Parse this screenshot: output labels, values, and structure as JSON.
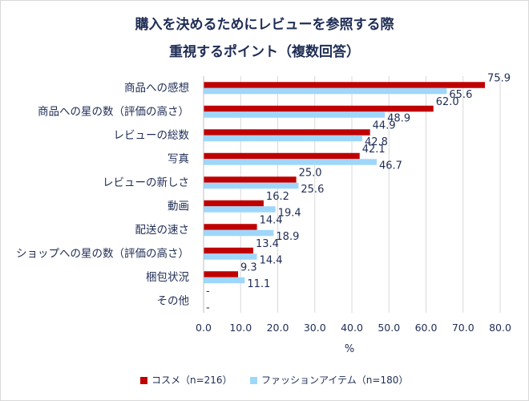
{
  "chart_data": {
    "type": "bar",
    "orientation": "horizontal",
    "title_lines": [
      "購入を決めるためにレビューを参照する際",
      "重視するポイント（複数回答）"
    ],
    "categories": [
      "商品への感想",
      "商品への星の数（評価の高さ）",
      "レビューの総数",
      "写真",
      "レビューの新しさ",
      "動画",
      "配送の速さ",
      "ショップへの星の数（評価の高さ）",
      "梱包状況",
      "その他"
    ],
    "series": [
      {
        "name": "コスメ（n=216）",
        "color": "#c00000",
        "values": [
          75.9,
          62.0,
          44.9,
          42.1,
          25.0,
          16.2,
          14.4,
          13.4,
          9.3,
          null
        ],
        "labels": [
          "75.9",
          "62.0",
          "44.9",
          "42.1",
          "25.0",
          "16.2",
          "14.4",
          "13.4",
          "9.3",
          "-"
        ]
      },
      {
        "name": "ファッションアイテム（n=180）",
        "color": "#9fd7fb",
        "values": [
          65.6,
          48.9,
          42.8,
          46.7,
          25.6,
          19.4,
          18.9,
          14.4,
          11.1,
          null
        ],
        "labels": [
          "65.6",
          "48.9",
          "42.8",
          "46.7",
          "25.6",
          "19.4",
          "18.9",
          "14.4",
          "11.1",
          "-"
        ]
      }
    ],
    "xlabel": "%",
    "xlim": [
      0,
      80
    ],
    "xticks": [
      "0.0",
      "10.0",
      "20.0",
      "30.0",
      "40.0",
      "50.0",
      "60.0",
      "70.0",
      "80.0"
    ],
    "grid": true,
    "legend_position": "bottom"
  }
}
